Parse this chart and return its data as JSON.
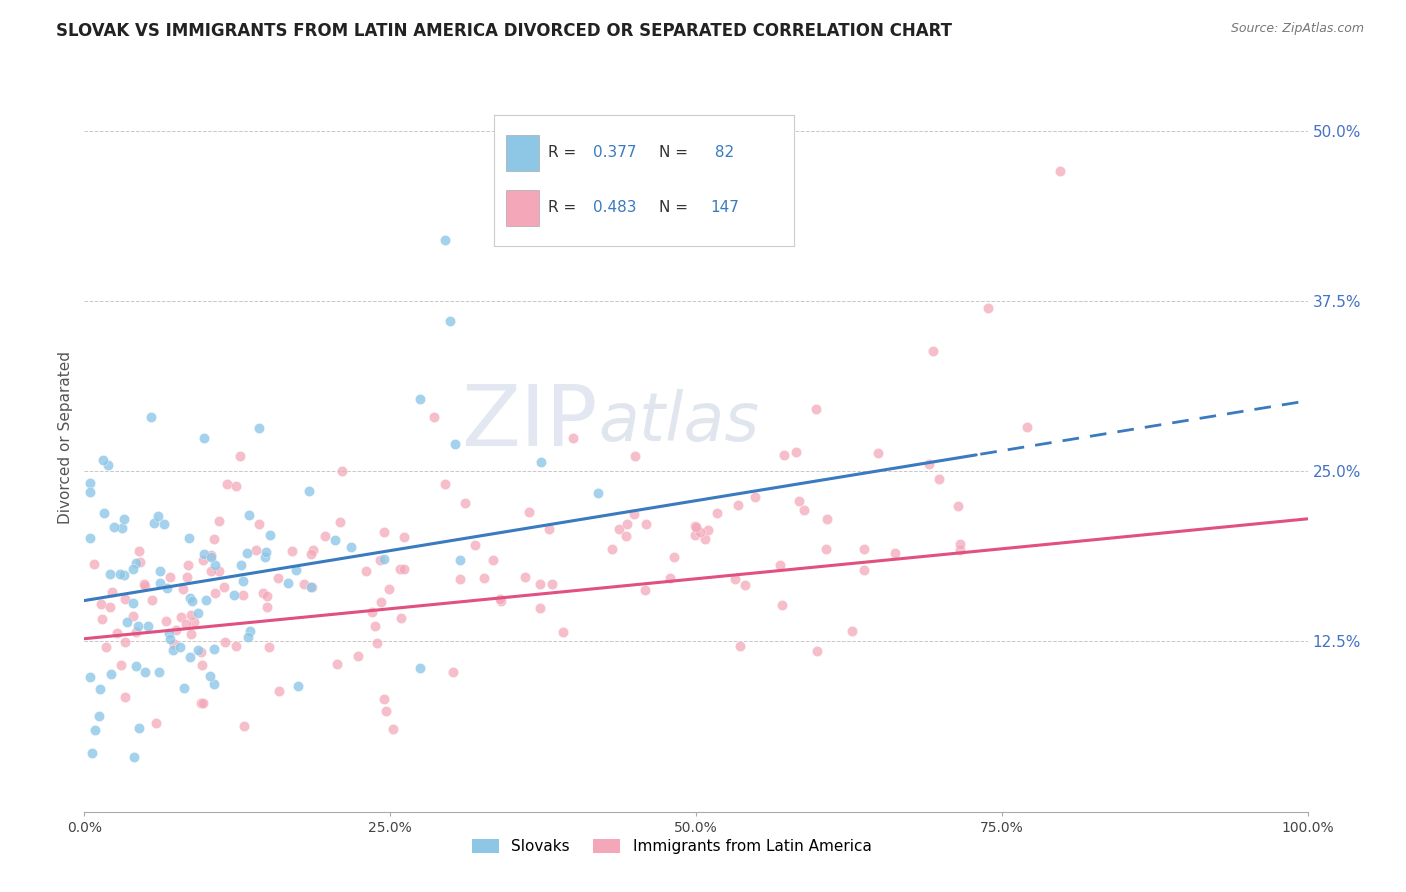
{
  "title": "SLOVAK VS IMMIGRANTS FROM LATIN AMERICA DIVORCED OR SEPARATED CORRELATION CHART",
  "source": "Source: ZipAtlas.com",
  "ylabel": "Divorced or Separated",
  "legend1_label": "Slovaks",
  "legend2_label": "Immigrants from Latin America",
  "R1": 0.377,
  "N1": 82,
  "R2": 0.483,
  "N2": 147,
  "color1": "#8ec6e6",
  "color2": "#f4a7b9",
  "line1_color": "#3a7abf",
  "line2_color": "#e05080",
  "xlim": [
    0.0,
    1.0
  ],
  "ylim": [
    0.0,
    0.55
  ],
  "xticks": [
    0.0,
    0.25,
    0.5,
    0.75,
    1.0
  ],
  "xtick_labels": [
    "0.0%",
    "25.0%",
    "50.0%",
    "75.0%",
    "100.0%"
  ],
  "yticks_right": [
    0.125,
    0.25,
    0.375,
    0.5
  ],
  "ytick_labels_right": [
    "12.5%",
    "25.0%",
    "37.5%",
    "50.0%"
  ],
  "grid_color": "#c8c8c8",
  "background_color": "#ffffff",
  "title_fontsize": 12,
  "axis_fontsize": 10,
  "tick_fontsize": 10,
  "right_tick_color": "#4472c4",
  "watermark_zip_color": "#c5cfe8",
  "watermark_atlas_color": "#c0cce0"
}
